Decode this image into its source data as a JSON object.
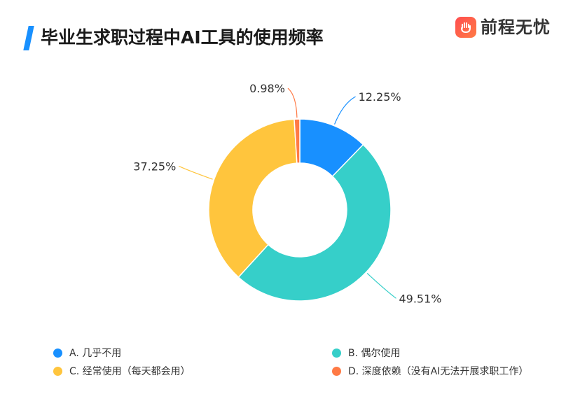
{
  "header": {
    "title": "毕业生求职过程中AI工具的使用频率",
    "logo_text": "前程无忧"
  },
  "chart_data": {
    "type": "pie",
    "donut": true,
    "title": "毕业生求职过程中AI工具的使用频率",
    "categories": [
      "A. 几乎不用",
      "B. 偶尔使用",
      "C. 经常使用（每天都会用）",
      "D. 深度依赖（没有AI无法开展求职工作）"
    ],
    "values": [
      12.25,
      49.51,
      37.25,
      0.98
    ],
    "labels": [
      "12.25%",
      "49.51%",
      "37.25%",
      "0.98%"
    ],
    "colors": [
      "#1890ff",
      "#36cfc9",
      "#ffc53d",
      "#ff7a45"
    ],
    "legend_position": "bottom"
  }
}
